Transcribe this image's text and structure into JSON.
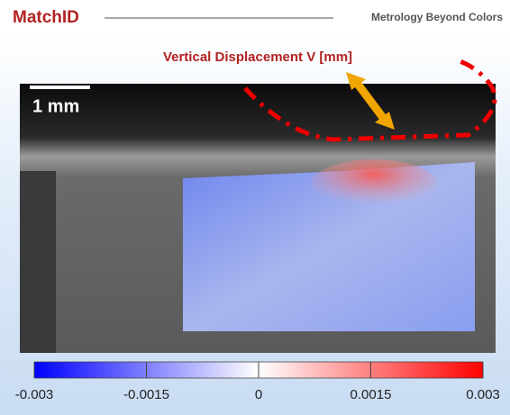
{
  "header": {
    "brand": "MatchID",
    "tagline": "Metrology Beyond Colors"
  },
  "figure": {
    "title": "Vertical Displacement V [mm]",
    "scale_bar": "1 mm",
    "colorbar": {
      "lim": [
        -0.003,
        0.003
      ],
      "ticks": [
        -0.003,
        -0.0015,
        0,
        0.0015,
        0.003
      ],
      "colors": [
        "#0000ff",
        "#ffffff",
        "#ff0000"
      ]
    }
  }
}
